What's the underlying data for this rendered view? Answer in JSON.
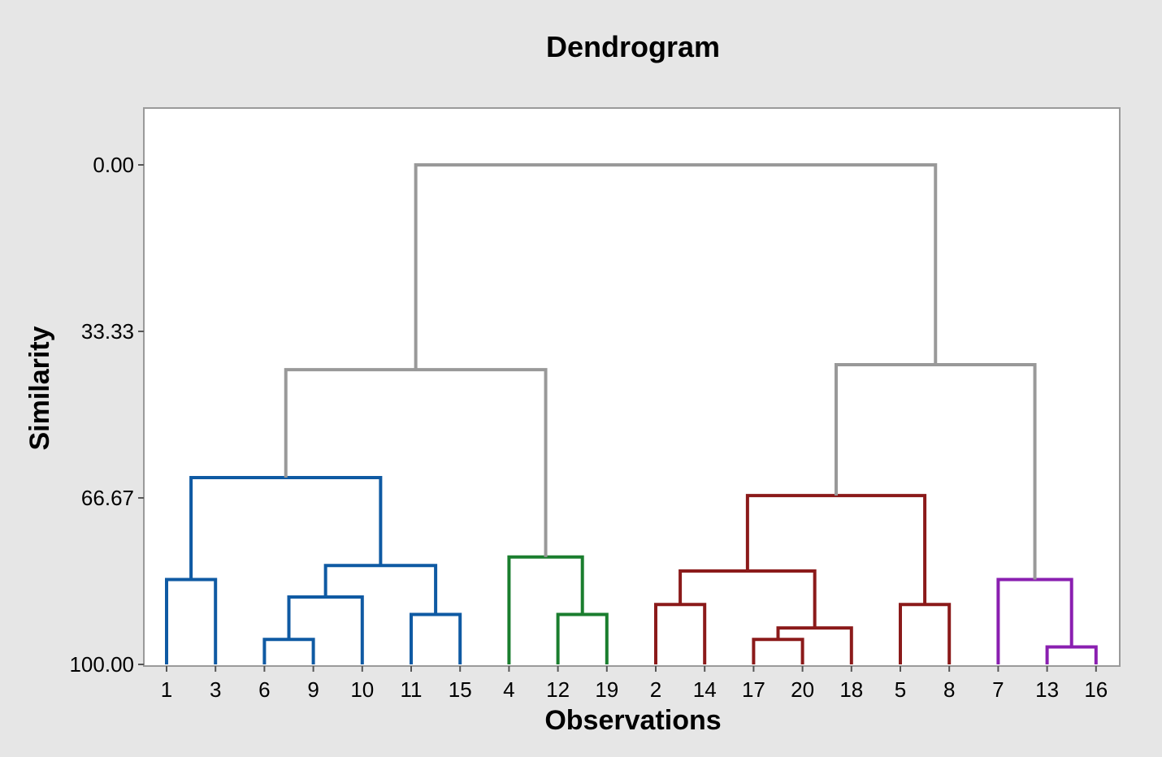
{
  "chart_data": {
    "type": "dendrogram",
    "title": "Dendrogram",
    "xlabel": "Observations",
    "ylabel": "Similarity",
    "ylim": [
      0,
      100
    ],
    "y_ticks": [
      "0.00",
      "33.33",
      "66.67",
      "100.00"
    ],
    "y_tick_values": [
      0,
      33.33,
      66.67,
      100
    ],
    "leaf_order": [
      "1",
      "3",
      "6",
      "9",
      "10",
      "11",
      "15",
      "4",
      "12",
      "19",
      "2",
      "14",
      "17",
      "20",
      "18",
      "5",
      "8",
      "7",
      "13",
      "16"
    ],
    "colors": {
      "root": "#999999",
      "blue": "#0f5aa3",
      "green": "#1a7e2e",
      "red": "#8b1a1a",
      "purple": "#8a1fb0"
    },
    "merges": [
      {
        "a": "L1",
        "b": "L3",
        "similarity": 83.0,
        "color": "blue",
        "id": "m1"
      },
      {
        "a": "L6",
        "b": "L9",
        "similarity": 95.0,
        "color": "blue",
        "id": "m2"
      },
      {
        "a": "m2",
        "b": "L10",
        "similarity": 86.5,
        "color": "blue",
        "id": "m3"
      },
      {
        "a": "L11",
        "b": "L15",
        "similarity": 90.0,
        "color": "blue",
        "id": "m4"
      },
      {
        "a": "m3",
        "b": "m4",
        "similarity": 80.2,
        "color": "blue",
        "id": "m5"
      },
      {
        "a": "m1",
        "b": "m5",
        "similarity": 62.6,
        "color": "blue",
        "id": "m6"
      },
      {
        "a": "L12",
        "b": "L19",
        "similarity": 90.0,
        "color": "green",
        "id": "m7"
      },
      {
        "a": "L4",
        "b": "m7",
        "similarity": 78.5,
        "color": "green",
        "id": "m8"
      },
      {
        "a": "m6",
        "b": "m8",
        "similarity": 41.0,
        "color": "root",
        "id": "m9"
      },
      {
        "a": "L2",
        "b": "L14",
        "similarity": 88.0,
        "color": "red",
        "id": "m10"
      },
      {
        "a": "L17",
        "b": "L20",
        "similarity": 95.0,
        "color": "red",
        "id": "m11"
      },
      {
        "a": "m11",
        "b": "L18",
        "similarity": 92.7,
        "color": "red",
        "id": "m12"
      },
      {
        "a": "m10",
        "b": "m12",
        "similarity": 81.3,
        "color": "red",
        "id": "m13"
      },
      {
        "a": "L5",
        "b": "L8",
        "similarity": 88.0,
        "color": "red",
        "id": "m14"
      },
      {
        "a": "m13",
        "b": "m14",
        "similarity": 66.2,
        "color": "red",
        "id": "m15"
      },
      {
        "a": "L13",
        "b": "L16",
        "similarity": 96.5,
        "color": "purple",
        "id": "m16"
      },
      {
        "a": "L7",
        "b": "m16",
        "similarity": 83.0,
        "color": "purple",
        "id": "m17"
      },
      {
        "a": "m15",
        "b": "m17",
        "similarity": 40.0,
        "color": "root",
        "id": "m18"
      },
      {
        "a": "m9",
        "b": "m18",
        "similarity": 0.0,
        "color": "root",
        "id": "m19"
      }
    ]
  }
}
